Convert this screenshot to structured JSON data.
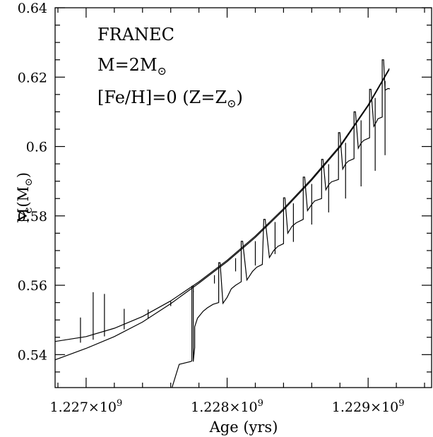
{
  "chart_data": {
    "type": "line",
    "title": "",
    "annotation_lines": [
      "FRANEC",
      "M=2M",
      "[Fe/H]=0 (Z=Z",
      ")"
    ],
    "xlabel": "Age (yrs)",
    "ylabel_main": "M",
    "ylabel_sub": "c",
    "ylabel_units": "(M",
    "ylabel_units_close": ")",
    "xlim": [
      1226.78,
      1229.45
    ],
    "ylim": [
      0.5305,
      0.64
    ],
    "x_unit_note": "x values in units of 10^6 yrs",
    "x_ticks": [
      {
        "value": 1227,
        "mant": "1.227×10",
        "exp": "9"
      },
      {
        "value": 1228,
        "mant": "1.228×10",
        "exp": "9"
      },
      {
        "value": 1229,
        "mant": "1.229×10",
        "exp": "9"
      }
    ],
    "y_ticks": [
      {
        "value": 0.54,
        "label": "0.54"
      },
      {
        "value": 0.56,
        "label": "0.56"
      },
      {
        "value": 0.58,
        "label": "0.58"
      },
      {
        "value": 0.6,
        "label": "0.6"
      },
      {
        "value": 0.62,
        "label": "0.62"
      },
      {
        "value": 0.64,
        "label": "0.64"
      }
    ],
    "series": [
      {
        "role": "envelope-upper",
        "x": [
          1226.78,
          1227.0,
          1227.2,
          1227.4,
          1227.6,
          1227.8,
          1228.0,
          1228.2,
          1228.4,
          1228.6,
          1228.8,
          1229.0,
          1229.15
        ],
        "y": [
          0.5438,
          0.5452,
          0.5476,
          0.551,
          0.5555,
          0.561,
          0.5672,
          0.5742,
          0.5821,
          0.5907,
          0.6002,
          0.612,
          0.6225
        ]
      },
      {
        "role": "envelope-lower",
        "x": [
          1226.78,
          1227.0,
          1227.2,
          1227.4,
          1227.6,
          1227.8,
          1228.0,
          1228.2,
          1228.4,
          1228.6,
          1228.8,
          1229.0,
          1229.15
        ],
        "y": [
          0.5385,
          0.5418,
          0.5452,
          0.5494,
          0.5547,
          0.5606,
          0.5668,
          0.5738,
          0.5817,
          0.5903,
          0.5998,
          0.6117,
          0.6222
        ]
      },
      {
        "role": "pulse-spikes",
        "x": [
          1226.96,
          1227.05,
          1227.13,
          1227.27,
          1227.44,
          1227.6,
          1227.76,
          1227.91,
          1228.06,
          1228.2,
          1228.34,
          1228.47,
          1228.6,
          1228.72,
          1228.84,
          1228.95,
          1229.05,
          1229.12
        ],
        "y": [
          0.5507,
          0.558,
          0.5575,
          0.5532,
          0.553,
          0.5553,
          0.558,
          0.5605,
          0.564,
          0.5657,
          0.569,
          0.5725,
          0.5775,
          0.581,
          0.585,
          0.5885,
          0.593,
          0.5975
        ]
      },
      {
        "role": "core-mass",
        "x": [
          1227.61,
          1227.64,
          1227.66,
          1227.74,
          1227.75,
          1227.75,
          1227.76,
          1227.76,
          1227.77,
          1227.77,
          1227.79,
          1227.83,
          1227.86,
          1227.9,
          1227.94,
          1227.94,
          1227.95,
          1227.97,
          1228.0,
          1228.03,
          1228.06,
          1228.1,
          1228.1,
          1228.11,
          1228.14,
          1228.18,
          1228.21,
          1228.25,
          1228.26,
          1228.27,
          1228.3,
          1228.33,
          1228.36,
          1228.4,
          1228.4,
          1228.41,
          1228.43,
          1228.46,
          1228.49,
          1228.54,
          1228.54,
          1228.55,
          1228.57,
          1228.6,
          1228.62,
          1228.67,
          1228.67,
          1228.68,
          1228.7,
          1228.72,
          1228.74,
          1228.79,
          1228.79,
          1228.8,
          1228.82,
          1228.84,
          1228.86,
          1228.9,
          1228.9,
          1228.91,
          1228.93,
          1228.95,
          1228.97,
          1229.01,
          1229.01,
          1229.02,
          1229.04,
          1229.06,
          1229.07,
          1229.1,
          1229.1,
          1229.11,
          1229.12,
          1229.14,
          1229.15,
          1229.15
        ],
        "y": [
          0.5306,
          0.5346,
          0.5372,
          0.538,
          0.5382,
          0.5597,
          0.5597,
          0.538,
          0.542,
          0.548,
          0.5505,
          0.5525,
          0.5535,
          0.5545,
          0.555,
          0.5665,
          0.5665,
          0.5548,
          0.5565,
          0.559,
          0.56,
          0.561,
          0.5727,
          0.5727,
          0.5615,
          0.564,
          0.5652,
          0.566,
          0.579,
          0.579,
          0.568,
          0.57,
          0.5712,
          0.572,
          0.5852,
          0.5852,
          0.575,
          0.577,
          0.578,
          0.579,
          0.5912,
          0.5912,
          0.5815,
          0.5833,
          0.5843,
          0.585,
          0.5963,
          0.5963,
          0.5875,
          0.589,
          0.5898,
          0.5905,
          0.604,
          0.604,
          0.5935,
          0.595,
          0.5958,
          0.5965,
          0.61,
          0.61,
          0.5995,
          0.601,
          0.6018,
          0.6025,
          0.6165,
          0.6165,
          0.6058,
          0.6072,
          0.608,
          0.6085,
          0.625,
          0.625,
          0.6162,
          0.6167,
          0.6167,
          0.6165
        ]
      }
    ]
  }
}
